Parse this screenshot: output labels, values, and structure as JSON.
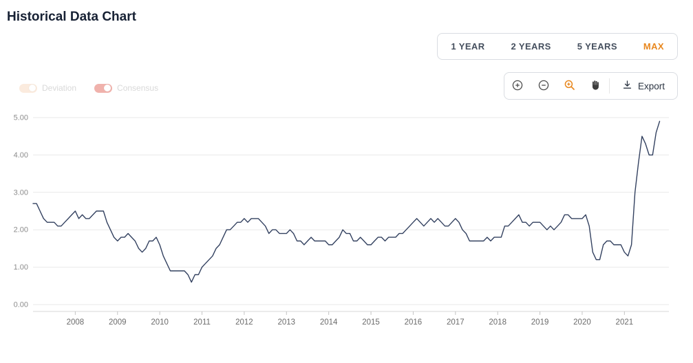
{
  "page": {
    "title": "Historical Data Chart"
  },
  "range_selector": {
    "options": [
      {
        "label": "1 YEAR",
        "active": false
      },
      {
        "label": "2 YEARS",
        "active": false
      },
      {
        "label": "5 YEARS",
        "active": false
      },
      {
        "label": "MAX",
        "active": true
      }
    ],
    "active_color": "#e8871e"
  },
  "legend": {
    "items": [
      {
        "label": "Deviation",
        "color": "#f8dcc4",
        "enabled": false
      },
      {
        "label": "Consensus",
        "color": "#e4746a",
        "enabled": false
      }
    ]
  },
  "toolbar": {
    "icons": [
      "zoom-in-icon",
      "zoom-out-icon",
      "zoom-area-icon",
      "pan-icon",
      "download-icon"
    ],
    "active_tool": "zoom-area",
    "accent_color": "#e8871e",
    "export_label": "Export"
  },
  "chart_data": {
    "type": "line",
    "title": "Historical Data Chart",
    "x_start": "2007-01",
    "x_end": "2021-11",
    "x_freq": "monthly",
    "series": [
      {
        "name": "value",
        "values": [
          2.7,
          2.7,
          2.5,
          2.3,
          2.2,
          2.2,
          2.2,
          2.1,
          2.1,
          2.2,
          2.3,
          2.4,
          2.5,
          2.3,
          2.4,
          2.3,
          2.3,
          2.4,
          2.5,
          2.5,
          2.5,
          2.2,
          2.0,
          1.8,
          1.7,
          1.8,
          1.8,
          1.9,
          1.8,
          1.7,
          1.5,
          1.4,
          1.5,
          1.7,
          1.7,
          1.8,
          1.6,
          1.3,
          1.1,
          0.9,
          0.9,
          0.9,
          0.9,
          0.9,
          0.8,
          0.6,
          0.8,
          0.8,
          1.0,
          1.1,
          1.2,
          1.3,
          1.5,
          1.6,
          1.8,
          2.0,
          2.0,
          2.1,
          2.2,
          2.2,
          2.3,
          2.2,
          2.3,
          2.3,
          2.3,
          2.2,
          2.1,
          1.9,
          2.0,
          2.0,
          1.9,
          1.9,
          1.9,
          2.0,
          1.9,
          1.7,
          1.7,
          1.6,
          1.7,
          1.8,
          1.7,
          1.7,
          1.7,
          1.7,
          1.6,
          1.6,
          1.7,
          1.8,
          2.0,
          1.9,
          1.9,
          1.7,
          1.7,
          1.8,
          1.7,
          1.6,
          1.6,
          1.7,
          1.8,
          1.8,
          1.7,
          1.8,
          1.8,
          1.8,
          1.9,
          1.9,
          2.0,
          2.1,
          2.2,
          2.3,
          2.2,
          2.1,
          2.2,
          2.3,
          2.2,
          2.3,
          2.2,
          2.1,
          2.1,
          2.2,
          2.3,
          2.2,
          2.0,
          1.9,
          1.7,
          1.7,
          1.7,
          1.7,
          1.7,
          1.8,
          1.7,
          1.8,
          1.8,
          1.8,
          2.1,
          2.1,
          2.2,
          2.3,
          2.4,
          2.2,
          2.2,
          2.1,
          2.2,
          2.2,
          2.2,
          2.1,
          2.0,
          2.1,
          2.0,
          2.1,
          2.2,
          2.4,
          2.4,
          2.3,
          2.3,
          2.3,
          2.3,
          2.4,
          2.1,
          1.4,
          1.2,
          1.2,
          1.6,
          1.7,
          1.7,
          1.6,
          1.6,
          1.6,
          1.4,
          1.3,
          1.6,
          3.0,
          3.8,
          4.5,
          4.3,
          4.0,
          4.0,
          4.6,
          4.9
        ]
      }
    ],
    "ylim": [
      0,
      5
    ],
    "yticks": [
      0,
      1,
      2,
      3,
      4,
      5
    ],
    "ytick_format": "2dp",
    "xticks": [
      2008,
      2009,
      2010,
      2011,
      2012,
      2013,
      2014,
      2015,
      2016,
      2017,
      2018,
      2019,
      2020,
      2021
    ],
    "grid": "horizontal",
    "legend_position": "none",
    "line_color": "#32405f"
  }
}
